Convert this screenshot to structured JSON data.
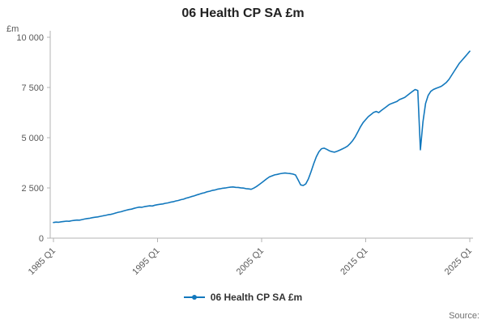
{
  "footer": {
    "source_label": "Source:"
  },
  "chart_data": {
    "type": "line",
    "title": "06 Health CP SA £m",
    "ylabel": "£m",
    "xlabel": "",
    "grid": false,
    "legend_position": "bottom",
    "ylim": [
      0,
      10000
    ],
    "y_ticks": [
      0,
      2500,
      5000,
      7500,
      10000
    ],
    "y_tick_labels": [
      "0",
      "2 500",
      "5 000",
      "7 500",
      "10 000"
    ],
    "x_start": "1985 Q1",
    "x_freq": "quarterly",
    "x_tick_labels": [
      "1985 Q1",
      "1995 Q1",
      "2005 Q1",
      "2015 Q1",
      "2025 Q1"
    ],
    "x_tick_indices": [
      0,
      40,
      80,
      120,
      160
    ],
    "colors": {
      "line": "#1278bd",
      "axis": "#b3b3b3",
      "tick_text": "#595959"
    },
    "series": [
      {
        "name": "06 Health CP SA £m",
        "values": [
          780,
          800,
          790,
          815,
          830,
          845,
          840,
          865,
          885,
          900,
          895,
          925,
          950,
          975,
          990,
          1020,
          1040,
          1055,
          1085,
          1110,
          1135,
          1165,
          1180,
          1215,
          1255,
          1290,
          1315,
          1355,
          1390,
          1425,
          1445,
          1485,
          1515,
          1545,
          1535,
          1570,
          1590,
          1610,
          1600,
          1640,
          1665,
          1685,
          1700,
          1735,
          1755,
          1790,
          1810,
          1850,
          1875,
          1915,
          1940,
          1990,
          2025,
          2070,
          2100,
          2150,
          2185,
          2230,
          2260,
          2305,
          2335,
          2375,
          2395,
          2435,
          2455,
          2485,
          2495,
          2520,
          2535,
          2550,
          2530,
          2525,
          2505,
          2490,
          2465,
          2450,
          2430,
          2490,
          2570,
          2660,
          2760,
          2860,
          2960,
          3050,
          3100,
          3150,
          3175,
          3205,
          3225,
          3240,
          3225,
          3215,
          3190,
          3145,
          2905,
          2650,
          2620,
          2705,
          2955,
          3305,
          3705,
          4050,
          4300,
          4450,
          4480,
          4425,
          4350,
          4305,
          4280,
          4325,
          4380,
          4440,
          4505,
          4580,
          4705,
          4855,
          5050,
          5300,
          5550,
          5755,
          5905,
          6050,
          6150,
          6255,
          6305,
          6250,
          6355,
          6450,
          6550,
          6650,
          6705,
          6755,
          6805,
          6900,
          6950,
          7005,
          7105,
          7205,
          7305,
          7400,
          7350,
          4400,
          5800,
          6705,
          7105,
          7305,
          7400,
          7455,
          7505,
          7555,
          7650,
          7755,
          7905,
          8105,
          8305,
          8505,
          8705,
          8855,
          9005,
          9155,
          9305
        ]
      }
    ]
  }
}
